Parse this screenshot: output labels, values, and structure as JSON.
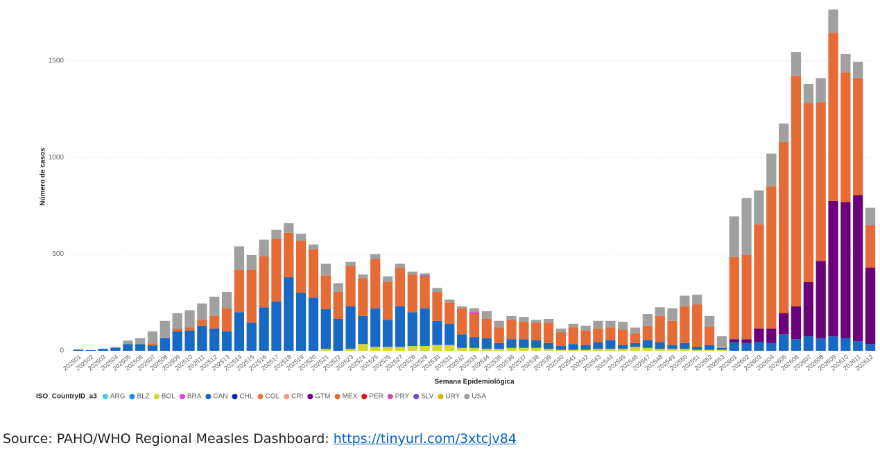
{
  "chart_data": {
    "type": "stacked-bar",
    "y_label": "Número de casos",
    "x_label": "Semana Epidemiológica",
    "legend_title": "ISO_CountryID_a3",
    "categories": [
      "202501",
      "202502",
      "202503",
      "202504",
      "202505",
      "202506",
      "202507",
      "202508",
      "202509",
      "202510",
      "202511",
      "202512",
      "202513",
      "202514",
      "202515",
      "202516",
      "202517",
      "202518",
      "202519",
      "202520",
      "202521",
      "202522",
      "202523",
      "202524",
      "202525",
      "202526",
      "202527",
      "202528",
      "202529",
      "202530",
      "202531",
      "202532",
      "202533",
      "202534",
      "202535",
      "202536",
      "202537",
      "202538",
      "202539",
      "202540",
      "202541",
      "202542",
      "202543",
      "202544",
      "202545",
      "202546",
      "202547",
      "202548",
      "202549",
      "202550",
      "202551",
      "202552",
      "202553",
      "202601",
      "202602",
      "202603",
      "202604",
      "202605",
      "202606",
      "202607",
      "202608",
      "202609",
      "202610",
      "202611",
      "202612"
    ],
    "ylim": [
      0,
      1800
    ],
    "yticks": [
      0,
      500,
      1000,
      1500
    ],
    "grid": true,
    "series": [
      {
        "name": "ARG",
        "color": "#3fd0d9",
        "values": [
          0,
          0,
          0,
          0,
          0,
          0,
          0,
          0,
          0,
          0,
          0,
          0,
          0,
          0,
          0,
          0,
          0,
          0,
          0,
          0,
          0,
          0,
          0,
          0,
          0,
          0,
          0,
          0,
          0,
          0,
          0,
          0,
          0,
          0,
          0,
          0,
          0,
          0,
          0,
          0,
          0,
          0,
          0,
          0,
          0,
          0,
          0,
          0,
          0,
          0,
          0,
          0,
          0,
          0,
          0,
          0,
          0,
          0,
          0,
          0,
          0,
          0,
          0,
          0,
          0
        ]
      },
      {
        "name": "BLZ",
        "color": "#118dff",
        "values": [
          0,
          0,
          0,
          0,
          0,
          0,
          0,
          0,
          0,
          0,
          0,
          0,
          0,
          0,
          0,
          0,
          0,
          0,
          0,
          0,
          0,
          0,
          0,
          0,
          0,
          0,
          0,
          0,
          0,
          0,
          0,
          0,
          0,
          0,
          0,
          0,
          0,
          0,
          0,
          0,
          0,
          0,
          0,
          0,
          0,
          0,
          0,
          0,
          0,
          0,
          0,
          0,
          0,
          0,
          0,
          0,
          0,
          0,
          0,
          0,
          0,
          0,
          0,
          0,
          0
        ]
      },
      {
        "name": "BOL",
        "color": "#d4d835",
        "values": [
          0,
          0,
          0,
          0,
          0,
          0,
          0,
          0,
          0,
          0,
          0,
          0,
          0,
          0,
          0,
          0,
          0,
          0,
          0,
          0,
          10,
          0,
          10,
          35,
          20,
          20,
          20,
          25,
          25,
          30,
          30,
          15,
          15,
          10,
          10,
          15,
          15,
          15,
          10,
          5,
          5,
          5,
          10,
          10,
          10,
          20,
          15,
          10,
          10,
          10,
          5,
          5,
          5,
          0,
          0,
          0,
          0,
          0,
          0,
          0,
          0,
          0,
          0,
          0,
          0
        ]
      },
      {
        "name": "BRA",
        "color": "#e044d0",
        "values": [
          0,
          0,
          0,
          0,
          0,
          0,
          0,
          0,
          0,
          0,
          0,
          0,
          0,
          0,
          0,
          0,
          0,
          0,
          0,
          0,
          0,
          0,
          0,
          0,
          0,
          0,
          0,
          0,
          0,
          0,
          0,
          0,
          0,
          0,
          0,
          0,
          0,
          0,
          0,
          0,
          0,
          0,
          0,
          0,
          0,
          0,
          0,
          0,
          0,
          0,
          0,
          0,
          0,
          0,
          0,
          0,
          0,
          0,
          0,
          0,
          0,
          0,
          0,
          0,
          0
        ]
      },
      {
        "name": "CAN",
        "color": "#1769c4",
        "values": [
          6,
          4,
          10,
          15,
          35,
          35,
          28,
          65,
          100,
          105,
          130,
          115,
          100,
          200,
          145,
          225,
          255,
          380,
          300,
          275,
          205,
          165,
          220,
          145,
          200,
          140,
          210,
          175,
          195,
          125,
          110,
          70,
          55,
          55,
          30,
          45,
          45,
          40,
          30,
          20,
          30,
          25,
          35,
          45,
          20,
          20,
          40,
          35,
          20,
          30,
          15,
          25,
          10,
          45,
          40,
          45,
          40,
          85,
          60,
          75,
          65,
          75,
          65,
          50,
          35
        ]
      },
      {
        "name": "CHL",
        "color": "#12239e",
        "values": [
          0,
          0,
          0,
          0,
          0,
          0,
          0,
          0,
          0,
          0,
          0,
          0,
          0,
          0,
          0,
          0,
          0,
          0,
          0,
          0,
          0,
          0,
          0,
          0,
          0,
          0,
          0,
          0,
          0,
          0,
          0,
          0,
          0,
          0,
          0,
          0,
          0,
          0,
          0,
          0,
          0,
          0,
          0,
          0,
          0,
          0,
          0,
          0,
          0,
          0,
          0,
          0,
          0,
          0,
          0,
          0,
          0,
          0,
          0,
          0,
          0,
          0,
          0,
          0,
          0
        ]
      },
      {
        "name": "COL",
        "color": "#e8743b",
        "values": [
          0,
          0,
          0,
          0,
          0,
          0,
          0,
          0,
          0,
          0,
          0,
          0,
          0,
          0,
          0,
          0,
          0,
          0,
          0,
          0,
          0,
          0,
          0,
          0,
          0,
          0,
          0,
          0,
          0,
          0,
          0,
          0,
          0,
          0,
          0,
          0,
          0,
          0,
          0,
          0,
          0,
          0,
          0,
          0,
          0,
          0,
          0,
          0,
          0,
          0,
          0,
          0,
          0,
          0,
          0,
          0,
          0,
          0,
          0,
          0,
          0,
          0,
          0,
          0,
          0
        ]
      },
      {
        "name": "CRI",
        "color": "#f29a7a",
        "values": [
          0,
          0,
          0,
          0,
          0,
          0,
          0,
          0,
          0,
          0,
          0,
          0,
          0,
          0,
          0,
          0,
          0,
          0,
          0,
          0,
          0,
          0,
          0,
          0,
          0,
          0,
          0,
          0,
          0,
          0,
          0,
          0,
          0,
          0,
          0,
          0,
          0,
          0,
          0,
          0,
          0,
          0,
          0,
          0,
          0,
          0,
          0,
          0,
          0,
          0,
          0,
          0,
          0,
          0,
          0,
          0,
          0,
          0,
          0,
          0,
          0,
          0,
          0,
          0,
          0
        ]
      },
      {
        "name": "GTM",
        "color": "#6b007b",
        "values": [
          0,
          0,
          0,
          0,
          0,
          0,
          0,
          0,
          0,
          0,
          0,
          0,
          0,
          0,
          0,
          0,
          0,
          0,
          0,
          0,
          0,
          0,
          0,
          0,
          0,
          0,
          0,
          0,
          0,
          0,
          0,
          0,
          0,
          0,
          0,
          0,
          0,
          0,
          0,
          0,
          0,
          0,
          0,
          0,
          0,
          0,
          0,
          0,
          0,
          0,
          0,
          0,
          0,
          15,
          20,
          70,
          75,
          110,
          170,
          280,
          400,
          700,
          705,
          755,
          395
        ]
      },
      {
        "name": "MEX",
        "color": "#e66c37",
        "values": [
          0,
          0,
          0,
          0,
          0,
          0,
          10,
          0,
          15,
          15,
          30,
          65,
          120,
          220,
          275,
          265,
          325,
          230,
          270,
          250,
          175,
          140,
          210,
          195,
          255,
          195,
          200,
          195,
          165,
          150,
          110,
          135,
          120,
          100,
          80,
          100,
          90,
          90,
          105,
          70,
          85,
          75,
          70,
          65,
          80,
          50,
          75,
          135,
          125,
          190,
          220,
          95,
          0,
          425,
          435,
          540,
          735,
          885,
          1190,
          925,
          820,
          870,
          670,
          605,
          220
        ]
      },
      {
        "name": "PER",
        "color": "#e0101f",
        "values": [
          0,
          0,
          0,
          0,
          0,
          0,
          0,
          0,
          0,
          0,
          0,
          0,
          0,
          0,
          0,
          0,
          0,
          0,
          0,
          0,
          0,
          0,
          0,
          0,
          0,
          0,
          0,
          0,
          0,
          0,
          0,
          0,
          0,
          0,
          0,
          0,
          0,
          0,
          0,
          0,
          0,
          0,
          0,
          0,
          0,
          0,
          0,
          0,
          0,
          0,
          0,
          0,
          0,
          0,
          0,
          0,
          0,
          0,
          0,
          0,
          0,
          0,
          0,
          0,
          0
        ]
      },
      {
        "name": "PRY",
        "color": "#e044a7",
        "values": [
          0,
          0,
          0,
          0,
          0,
          0,
          0,
          0,
          0,
          0,
          0,
          0,
          0,
          0,
          0,
          0,
          0,
          0,
          0,
          0,
          0,
          0,
          0,
          0,
          0,
          0,
          0,
          0,
          0,
          0,
          0,
          0,
          10,
          0,
          0,
          0,
          0,
          0,
          0,
          0,
          0,
          0,
          0,
          0,
          0,
          0,
          0,
          0,
          0,
          0,
          0,
          0,
          0,
          0,
          0,
          0,
          0,
          0,
          0,
          0,
          0,
          0,
          0,
          0,
          0
        ]
      },
      {
        "name": "SLV",
        "color": "#744ec2",
        "values": [
          0,
          0,
          0,
          0,
          0,
          0,
          0,
          0,
          0,
          0,
          0,
          0,
          0,
          0,
          0,
          0,
          0,
          0,
          0,
          0,
          0,
          0,
          0,
          0,
          0,
          0,
          0,
          0,
          5,
          0,
          0,
          0,
          0,
          0,
          0,
          0,
          0,
          0,
          0,
          0,
          0,
          0,
          0,
          0,
          0,
          0,
          0,
          0,
          0,
          0,
          0,
          0,
          0,
          0,
          0,
          0,
          0,
          0,
          0,
          0,
          0,
          0,
          0,
          0,
          0
        ]
      },
      {
        "name": "URY",
        "color": "#d9b300",
        "values": [
          0,
          0,
          0,
          0,
          0,
          0,
          0,
          0,
          0,
          0,
          0,
          0,
          0,
          0,
          0,
          0,
          0,
          0,
          0,
          0,
          0,
          0,
          0,
          0,
          0,
          0,
          0,
          0,
          0,
          0,
          0,
          0,
          0,
          0,
          0,
          0,
          0,
          0,
          0,
          0,
          0,
          0,
          0,
          0,
          0,
          0,
          0,
          0,
          0,
          0,
          0,
          0,
          0,
          0,
          0,
          0,
          0,
          0,
          0,
          0,
          0,
          0,
          0,
          0,
          0
        ]
      },
      {
        "name": "USA",
        "color": "#a0a0a0",
        "values": [
          2,
          0,
          0,
          5,
          18,
          30,
          62,
          90,
          80,
          90,
          85,
          100,
          85,
          120,
          75,
          85,
          45,
          50,
          35,
          25,
          60,
          45,
          20,
          20,
          25,
          30,
          20,
          15,
          10,
          20,
          15,
          10,
          20,
          40,
          35,
          20,
          25,
          15,
          20,
          20,
          20,
          25,
          40,
          35,
          40,
          30,
          60,
          45,
          65,
          55,
          50,
          55,
          60,
          210,
          295,
          175,
          170,
          95,
          125,
          100,
          125,
          120,
          95,
          85,
          90
        ]
      }
    ]
  },
  "source": {
    "text": "Source: PAHO/WHO Regional Measles Dashboard: ",
    "link": "https://tinyurl.com/3xtcjv84"
  }
}
